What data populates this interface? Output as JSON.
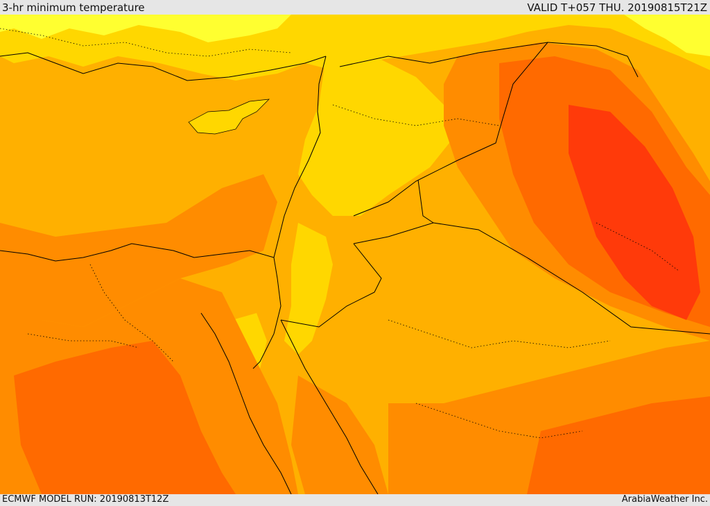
{
  "header": {
    "title": "3-hr minimum temperature",
    "valid": "VALID T+057 THU. 20190815T21Z"
  },
  "footer": {
    "model_run": "ECMWF MODEL RUN: 20190813T12Z",
    "credit": "ArabiaWeather Inc."
  },
  "palette": {
    "light_yellow": "#ffff30",
    "yellow": "#ffd700",
    "light_orange": "#ffb000",
    "orange": "#ff8c00",
    "dark_orange": "#ff6a00",
    "red_orange": "#ff3a0a",
    "border": "#000000"
  }
}
